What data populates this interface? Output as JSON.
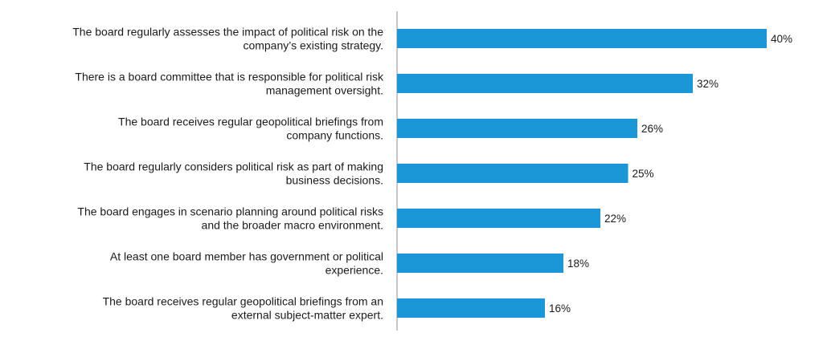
{
  "chart_data": {
    "type": "bar",
    "orientation": "horizontal",
    "categories": [
      [
        "The board regularly assesses the impact of political risk on the",
        "company’s existing strategy."
      ],
      [
        "There is a board committee that is responsible for political risk",
        "management oversight."
      ],
      [
        "The board receives regular geopolitical briefings from",
        "company functions."
      ],
      [
        "The board regularly considers political risk as part of making",
        "business decisions."
      ],
      [
        "The board engages in scenario planning around political risks",
        "and the broader macro environment."
      ],
      [
        "At least one board member has government or political",
        "experience."
      ],
      [
        "The board receives regular geopolitical briefings from an",
        "external subject-matter expert."
      ]
    ],
    "values": [
      40,
      32,
      26,
      25,
      22,
      18,
      16
    ],
    "value_labels": [
      "40%",
      "32%",
      "26%",
      "25%",
      "22%",
      "18%",
      "16%"
    ],
    "unit": "%",
    "xlim": [
      0,
      40
    ],
    "grid": false,
    "legend": "none",
    "colors": {
      "bar": "#1b96d6",
      "axis": "#8c8c8c",
      "text": "#1a1a1a"
    }
  }
}
